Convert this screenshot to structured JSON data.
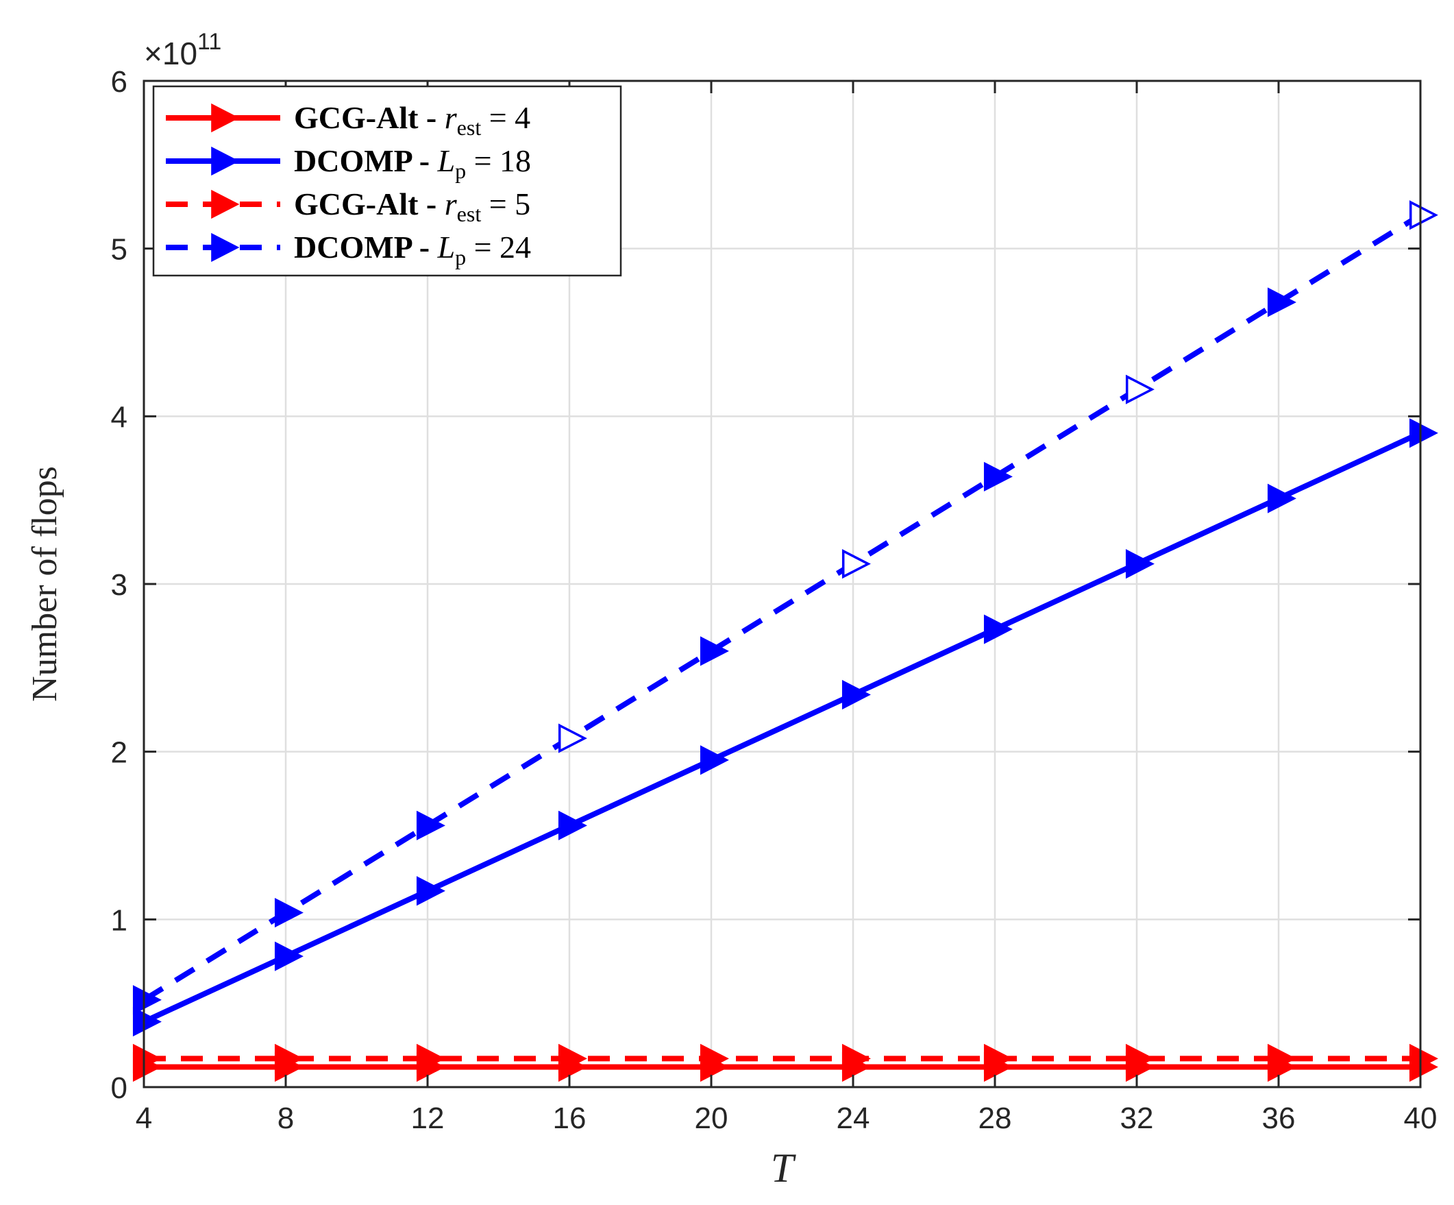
{
  "chart_data": {
    "type": "line",
    "xlabel": "T",
    "ylabel": "Number of flops",
    "y_exponent_label": "×10",
    "y_exponent_power": "11",
    "xlim": [
      4,
      40
    ],
    "ylim": [
      0,
      6
    ],
    "xticks": [
      "4",
      "8",
      "12",
      "16",
      "20",
      "24",
      "28",
      "32",
      "36",
      "40"
    ],
    "yticks": [
      "0",
      "1",
      "2",
      "3",
      "4",
      "5",
      "6"
    ],
    "grid": true,
    "legend_position": "top-left",
    "x": [
      4,
      8,
      12,
      16,
      20,
      24,
      28,
      32,
      36,
      40
    ],
    "series": [
      {
        "name": "GCG-Alt - r_est = 4",
        "legend": {
          "prefix": "GCG-Alt - ",
          "var": "r",
          "sub": "est",
          "suffix": " = 4"
        },
        "color": "#ff0000",
        "style": "solid",
        "marker": "filled-right-triangle",
        "values": [
          0.12,
          0.12,
          0.12,
          0.12,
          0.12,
          0.12,
          0.12,
          0.12,
          0.12,
          0.12
        ]
      },
      {
        "name": "DCOMP - L_p = 18",
        "legend": {
          "prefix": "DCOMP - ",
          "var": "L",
          "sub": "p",
          "suffix": " = 18"
        },
        "color": "#0000ff",
        "style": "solid",
        "marker": "filled-right-triangle",
        "values": [
          0.39,
          0.78,
          1.17,
          1.56,
          1.95,
          2.34,
          2.73,
          3.12,
          3.51,
          3.9
        ]
      },
      {
        "name": "GCG-Alt - r_est = 5",
        "legend": {
          "prefix": "GCG-Alt - ",
          "var": "r",
          "sub": "est",
          "suffix": " = 5"
        },
        "color": "#ff0000",
        "style": "dashed",
        "marker": "filled-right-triangle",
        "values": [
          0.17,
          0.17,
          0.17,
          0.17,
          0.17,
          0.17,
          0.17,
          0.17,
          0.17,
          0.17
        ]
      },
      {
        "name": "DCOMP - L_p = 24",
        "legend": {
          "prefix": "DCOMP - ",
          "var": "L",
          "sub": "p",
          "suffix": " = 24"
        },
        "color": "#0000ff",
        "style": "dashed",
        "marker": "mixed-right-triangle",
        "values": [
          0.52,
          1.04,
          1.56,
          2.08,
          2.6,
          3.12,
          3.64,
          4.16,
          4.68,
          5.2
        ]
      }
    ]
  }
}
